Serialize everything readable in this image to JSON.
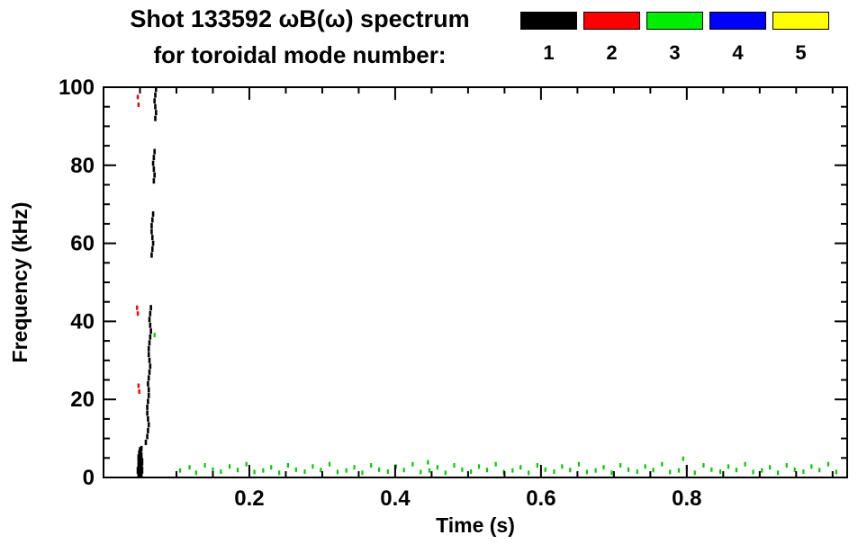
{
  "title": {
    "line1": "Shot 133592 ωB(ω) spectrum",
    "line2": "for toroidal mode number:"
  },
  "legend": {
    "items": [
      {
        "label": "1",
        "color": "#000000"
      },
      {
        "label": "2",
        "color": "#ff0000"
      },
      {
        "label": "3",
        "color": "#00ee00"
      },
      {
        "label": "4",
        "color": "#0000ff"
      },
      {
        "label": "5",
        "color": "#ffff00"
      }
    ]
  },
  "chart_data": {
    "type": "scatter",
    "title": "Shot 133592 ωB(ω) spectrum for toroidal mode number: 1-5",
    "xlabel": "Time (s)",
    "ylabel": "Frequency (kHz)",
    "xlim": [
      0,
      1.02
    ],
    "ylim": [
      0,
      100
    ],
    "x_ticks": [
      0.2,
      0.4,
      0.6,
      0.8
    ],
    "x_tick_labels": [
      "0.2",
      "0.4",
      "0.6",
      "0.8"
    ],
    "x_minor": 0.05,
    "y_ticks": [
      0,
      20,
      40,
      60,
      80,
      100
    ],
    "y_tick_labels": [
      "0",
      "20",
      "40",
      "60",
      "80",
      "100"
    ],
    "y_minor": 5,
    "grid": false,
    "legend_position": "top-right",
    "series": [
      {
        "name": "n1",
        "color": "#000000",
        "marker_w": 2.6,
        "marker_h": 6,
        "points": [
          [
            0.048,
            0.8,
            9
          ],
          [
            0.05,
            1.0,
            9
          ],
          [
            0.052,
            0.6,
            7
          ],
          [
            0.047,
            1.8,
            8
          ],
          [
            0.049,
            2.0,
            10
          ],
          [
            0.051,
            2.2,
            10
          ],
          [
            0.053,
            1.9,
            8
          ],
          [
            0.048,
            3.0,
            9
          ],
          [
            0.05,
            3.2,
            11
          ],
          [
            0.052,
            3.4,
            9
          ],
          [
            0.049,
            4.1,
            10
          ],
          [
            0.051,
            4.3,
            10
          ],
          [
            0.053,
            4.0,
            8
          ],
          [
            0.048,
            5.0,
            8
          ],
          [
            0.05,
            5.2,
            9
          ],
          [
            0.052,
            5.5,
            8
          ],
          [
            0.049,
            6.2,
            7
          ],
          [
            0.051,
            6.4,
            7
          ],
          [
            0.05,
            7.1,
            6
          ],
          [
            0.052,
            7.4,
            6
          ],
          [
            0.058,
            9.0
          ],
          [
            0.06,
            10.5
          ],
          [
            0.061,
            12.0
          ],
          [
            0.062,
            13.5
          ],
          [
            0.061,
            15.0
          ],
          [
            0.06,
            16.5
          ],
          [
            0.06,
            18.0
          ],
          [
            0.061,
            19.5
          ],
          [
            0.062,
            21.0
          ],
          [
            0.062,
            22.5
          ],
          [
            0.061,
            24.0
          ],
          [
            0.062,
            25.5
          ],
          [
            0.063,
            27.0
          ],
          [
            0.064,
            28.5
          ],
          [
            0.063,
            30.0
          ],
          [
            0.062,
            31.5
          ],
          [
            0.062,
            33.0
          ],
          [
            0.063,
            34.5
          ],
          [
            0.064,
            36.0
          ],
          [
            0.065,
            37.5
          ],
          [
            0.064,
            39.0
          ],
          [
            0.063,
            40.5
          ],
          [
            0.064,
            42.0
          ],
          [
            0.065,
            43.5
          ],
          [
            0.066,
            57.0
          ],
          [
            0.067,
            58.5
          ],
          [
            0.068,
            60.0
          ],
          [
            0.067,
            61.5
          ],
          [
            0.066,
            63.0
          ],
          [
            0.066,
            64.5
          ],
          [
            0.067,
            66.0
          ],
          [
            0.068,
            67.5
          ],
          [
            0.069,
            76.0
          ],
          [
            0.07,
            77.5
          ],
          [
            0.069,
            79.0
          ],
          [
            0.068,
            80.5
          ],
          [
            0.069,
            82.0
          ],
          [
            0.07,
            83.5
          ],
          [
            0.071,
            92.0
          ],
          [
            0.072,
            93.5
          ],
          [
            0.071,
            95.0
          ],
          [
            0.07,
            96.5
          ],
          [
            0.071,
            98.0
          ],
          [
            0.072,
            99.5
          ]
        ]
      },
      {
        "name": "n2",
        "color": "#ff0000",
        "marker_w": 2.4,
        "marker_h": 5,
        "points": [
          [
            0.047,
            97.5
          ],
          [
            0.048,
            95.5
          ],
          [
            0.046,
            43.5
          ],
          [
            0.047,
            42.0
          ],
          [
            0.048,
            23.5
          ],
          [
            0.049,
            22.0
          ]
        ]
      },
      {
        "name": "n3",
        "color": "#00cc00",
        "marker_w": 2.2,
        "marker_h": 5,
        "points": [
          [
            0.105,
            1.8
          ],
          [
            0.118,
            2.6
          ],
          [
            0.127,
            1.2
          ],
          [
            0.139,
            3.1
          ],
          [
            0.15,
            2.0
          ],
          [
            0.161,
            1.5
          ],
          [
            0.173,
            2.8
          ],
          [
            0.184,
            1.9
          ],
          [
            0.196,
            3.4
          ],
          [
            0.207,
            1.4
          ],
          [
            0.219,
            1.8
          ],
          [
            0.23,
            2.6
          ],
          [
            0.241,
            1.2
          ],
          [
            0.253,
            3.1
          ],
          [
            0.264,
            2.0
          ],
          [
            0.276,
            1.5
          ],
          [
            0.287,
            2.8
          ],
          [
            0.298,
            1.9
          ],
          [
            0.31,
            3.4
          ],
          [
            0.321,
            1.4
          ],
          [
            0.333,
            1.8
          ],
          [
            0.344,
            2.6
          ],
          [
            0.355,
            1.2
          ],
          [
            0.367,
            3.1
          ],
          [
            0.378,
            2.0
          ],
          [
            0.39,
            1.5
          ],
          [
            0.401,
            2.8
          ],
          [
            0.412,
            1.9
          ],
          [
            0.424,
            3.4
          ],
          [
            0.435,
            1.4
          ],
          [
            0.447,
            1.8
          ],
          [
            0.458,
            2.6
          ],
          [
            0.469,
            1.2
          ],
          [
            0.481,
            3.1
          ],
          [
            0.492,
            2.0
          ],
          [
            0.504,
            1.5
          ],
          [
            0.515,
            2.8
          ],
          [
            0.526,
            1.9
          ],
          [
            0.538,
            3.4
          ],
          [
            0.549,
            1.4
          ],
          [
            0.561,
            1.8
          ],
          [
            0.572,
            2.6
          ],
          [
            0.583,
            1.2
          ],
          [
            0.595,
            3.1
          ],
          [
            0.606,
            2.0
          ],
          [
            0.618,
            1.5
          ],
          [
            0.629,
            2.8
          ],
          [
            0.64,
            1.9
          ],
          [
            0.652,
            3.4
          ],
          [
            0.663,
            1.4
          ],
          [
            0.675,
            1.8
          ],
          [
            0.686,
            2.6
          ],
          [
            0.697,
            1.2
          ],
          [
            0.709,
            3.1
          ],
          [
            0.72,
            2.0
          ],
          [
            0.732,
            1.5
          ],
          [
            0.743,
            2.8
          ],
          [
            0.754,
            1.9
          ],
          [
            0.766,
            3.4
          ],
          [
            0.777,
            1.4
          ],
          [
            0.789,
            1.8
          ],
          [
            0.795,
            4.8
          ],
          [
            0.8,
            2.6
          ],
          [
            0.811,
            1.2
          ],
          [
            0.823,
            3.1
          ],
          [
            0.834,
            2.0
          ],
          [
            0.846,
            1.5
          ],
          [
            0.857,
            2.8
          ],
          [
            0.868,
            1.9
          ],
          [
            0.88,
            3.4
          ],
          [
            0.891,
            1.4
          ],
          [
            0.903,
            1.8
          ],
          [
            0.914,
            2.6
          ],
          [
            0.925,
            1.2
          ],
          [
            0.937,
            3.1
          ],
          [
            0.948,
            2.0
          ],
          [
            0.96,
            1.5
          ],
          [
            0.971,
            2.8
          ],
          [
            0.982,
            1.9
          ],
          [
            0.994,
            3.4
          ],
          [
            1.005,
            1.4
          ],
          [
            0.07,
            36.5
          ],
          [
            0.445,
            3.9
          ]
        ]
      },
      {
        "name": "n4",
        "color": "#0000ff",
        "marker_w": 2.2,
        "marker_h": 5,
        "points": []
      },
      {
        "name": "n5",
        "color": "#ffff00",
        "marker_w": 2.2,
        "marker_h": 5,
        "points": []
      }
    ]
  }
}
